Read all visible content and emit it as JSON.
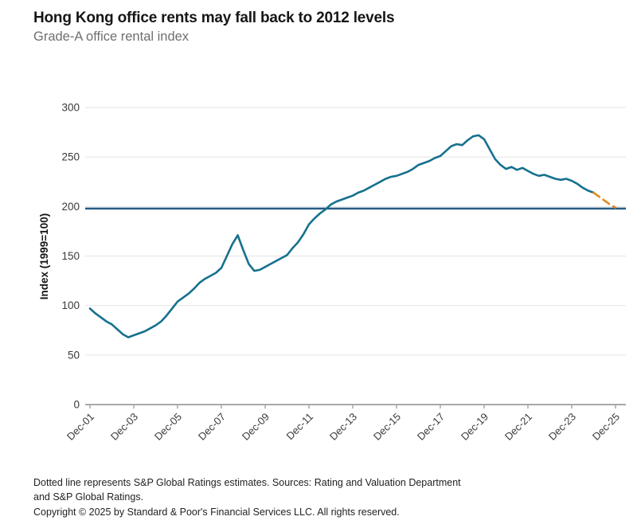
{
  "header": {
    "title": "Hong Kong office rents may fall back to 2012 levels",
    "subtitle": "Grade-A office rental index"
  },
  "footer": {
    "note_line1": "Dotted line represents S&P Global Ratings estimates. Sources: Rating and Valuation Department",
    "note_line2": "and S&P Global Ratings.",
    "copyright": "Copyright © 2025 by Standard & Poor's Financial Services LLC. All rights reserved."
  },
  "colors": {
    "actual_line": "#16718e",
    "estimate_line": "#e1891f",
    "reference_line": "#255c87",
    "gridline": "#e7e7e7",
    "axis": "#a8a8a8",
    "tick_label": "#3a3a3a"
  },
  "chart_data": {
    "type": "line",
    "title": "Grade-A office rental index",
    "ylabel": "Index (1999=100)",
    "ylim": [
      0,
      300
    ],
    "y_ticks": [
      0,
      50,
      100,
      150,
      200,
      250,
      300
    ],
    "x_tick_labels": [
      "Dec-01",
      "Dec-03",
      "Dec-05",
      "Dec-07",
      "Dec-09",
      "Dec-11",
      "Dec-13",
      "Dec-15",
      "Dec-17",
      "Dec-19",
      "Dec-21",
      "Dec-23",
      "Dec-25"
    ],
    "x_start": "Dec-01",
    "x_end": "Dec-25",
    "points_per_year": 4,
    "grid": "horizontal-only",
    "legend": "none",
    "reference_line": {
      "value": 198
    },
    "series": [
      {
        "name": "Grade-A office rental index (actual)",
        "style": "solid",
        "start": "Dec-01",
        "start_index": 0,
        "values": [
          97,
          92,
          88,
          84,
          81,
          76,
          71,
          68,
          70,
          72,
          74,
          77,
          80,
          84,
          90,
          97,
          104,
          108,
          112,
          117,
          123,
          127,
          130,
          133,
          138,
          150,
          162,
          171,
          156,
          142,
          135,
          136,
          139,
          142,
          145,
          148,
          151,
          158,
          164,
          172,
          182,
          188,
          193,
          197,
          202,
          205,
          207,
          209,
          211,
          214,
          216,
          219,
          222,
          225,
          228,
          230,
          231,
          233,
          235,
          238,
          242,
          244,
          246,
          249,
          251,
          256,
          261,
          263,
          262,
          267,
          271,
          272,
          268,
          258,
          248,
          242,
          238,
          240,
          237,
          239,
          236,
          233,
          231,
          232,
          230,
          228,
          227,
          228,
          226,
          223,
          219,
          216,
          214
        ]
      },
      {
        "name": "S&P Global Ratings estimates",
        "style": "dashed",
        "start": "Dec-24",
        "start_index": 92,
        "values": [
          214,
          210,
          206,
          202,
          199
        ]
      }
    ]
  }
}
